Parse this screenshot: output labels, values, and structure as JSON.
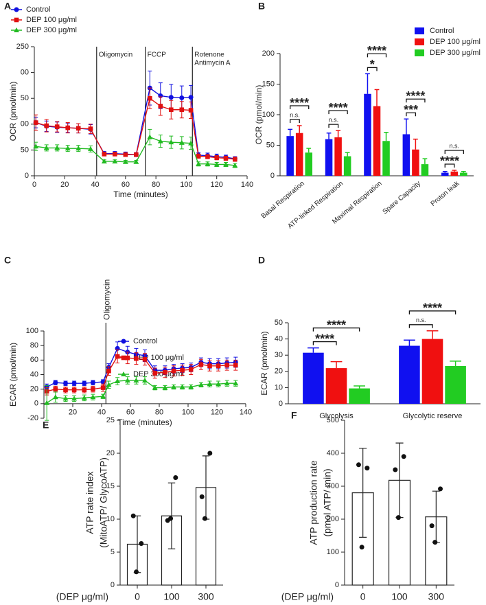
{
  "chart_data": [
    {
      "panel": "A",
      "type": "line",
      "xlabel": "Time (minutes)",
      "ylabel": "OCR (pmol/min)",
      "xlim": [
        0,
        140
      ],
      "xticks": [
        0,
        20,
        40,
        60,
        80,
        100,
        120,
        140
      ],
      "ylim": [
        0,
        250
      ],
      "yticks": [
        0,
        {
          "value": 50,
          "label": "50"
        },
        {
          "value": 100,
          "label": "00"
        },
        {
          "value": 150,
          "label": "50"
        },
        {
          "value": 200,
          "label": "00"
        },
        250
      ],
      "legend": "upper left",
      "x": [
        1,
        8,
        15,
        22,
        29,
        37,
        46,
        53,
        60,
        67,
        76,
        83,
        90,
        97,
        103,
        108,
        114,
        120,
        126,
        132
      ],
      "vlines": [
        {
          "x": 41,
          "label": [
            "Oligomycin"
          ]
        },
        {
          "x": 73,
          "label": [
            "FCCP"
          ]
        },
        {
          "x": 104,
          "label": [
            "Rotenone",
            "Antimycin A"
          ]
        }
      ],
      "series": [
        {
          "name": "Control",
          "color": "#1010e0",
          "marker": "circle",
          "values": [
            103,
            96,
            94,
            93,
            92,
            90,
            43,
            43,
            42,
            41,
            170,
            155,
            152,
            151,
            152,
            40,
            39,
            37,
            36,
            33
          ],
          "errors": [
            10,
            10,
            10,
            9,
            9,
            9,
            4,
            4,
            4,
            4,
            33,
            25,
            25,
            23,
            23,
            5,
            5,
            5,
            4,
            4
          ]
        },
        {
          "name": "DEP 100 μg/ml",
          "color": "#e01010",
          "marker": "square",
          "values": [
            103,
            97,
            95,
            93,
            92,
            91,
            42,
            42,
            41,
            41,
            150,
            135,
            128,
            128,
            127,
            38,
            37,
            35,
            34,
            32
          ],
          "errors": [
            15,
            12,
            10,
            10,
            9,
            9,
            3,
            3,
            3,
            3,
            20,
            18,
            18,
            16,
            16,
            4,
            4,
            4,
            4,
            4
          ]
        },
        {
          "name": "DEP 300 μg/ml",
          "color": "#22bb22",
          "marker": "triangle",
          "values": [
            57,
            54,
            54,
            53,
            53,
            52,
            28,
            28,
            27,
            27,
            75,
            67,
            65,
            64,
            63,
            23,
            23,
            22,
            22,
            20
          ],
          "errors": [
            8,
            6,
            6,
            6,
            6,
            6,
            3,
            3,
            3,
            3,
            15,
            12,
            12,
            12,
            12,
            4,
            4,
            4,
            4,
            4
          ]
        }
      ]
    },
    {
      "panel": "B",
      "type": "bar",
      "ylabel": "OCR (pmol/min)",
      "ylim": [
        0,
        200
      ],
      "yticks": [
        0,
        50,
        100,
        150,
        200
      ],
      "legend": "upper right",
      "label_rotate": true,
      "categories": [
        "Basal Respiration",
        "ATP-linked Respiration",
        "Maximal Respiration",
        "Spare Capacity",
        "Proton leak"
      ],
      "series": [
        {
          "name": "Control",
          "color": "#1010f0",
          "values": [
            65,
            60,
            134,
            68,
            5
          ],
          "errors": [
            11,
            10,
            33,
            25,
            2
          ]
        },
        {
          "name": "DEP 100 μg/ml",
          "color": "#f01010",
          "values": [
            70,
            63,
            114,
            43,
            7
          ],
          "errors": [
            12,
            11,
            27,
            17,
            2
          ]
        },
        {
          "name": "DEP 300 μg/ml",
          "color": "#22cc22",
          "values": [
            38,
            32,
            57,
            19,
            5
          ],
          "errors": [
            7,
            6,
            14,
            9,
            2
          ]
        }
      ],
      "significance": [
        [
          "n.s.",
          "****"
        ],
        [
          "n.s.",
          "****"
        ],
        [
          "*",
          "****"
        ],
        [
          "***",
          "****"
        ],
        [
          "****",
          "n.s."
        ]
      ]
    },
    {
      "panel": "C",
      "type": "line",
      "xlabel": "Time (minutes)",
      "ylabel": "ECAR (pmol/min)",
      "xlim": [
        0,
        140
      ],
      "xticks": [
        20,
        40,
        60,
        80,
        100,
        120,
        140
      ],
      "ylim": [
        -20,
        100
      ],
      "yticks": [
        -20,
        0,
        20,
        40,
        60,
        80,
        100
      ],
      "legend": "upper right",
      "x": [
        2,
        8,
        15,
        21,
        28,
        34,
        41,
        45,
        51,
        58,
        64,
        70,
        77,
        84,
        90,
        96,
        102,
        109,
        115,
        121,
        127,
        133
      ],
      "vlines": [
        {
          "x": 43,
          "label": [
            "Oligomycin"
          ],
          "rotate": true
        }
      ],
      "series": [
        {
          "name": "Control",
          "color": "#1010e0",
          "marker": "circle",
          "values": [
            23,
            29,
            28,
            28,
            28,
            29,
            30,
            50,
            76,
            71,
            68,
            66,
            46,
            46,
            48,
            49,
            50,
            57,
            55,
            55,
            56,
            57
          ],
          "errors": [
            4,
            3,
            3,
            3,
            3,
            3,
            3,
            5,
            9,
            8,
            8,
            8,
            6,
            6,
            6,
            6,
            6,
            6,
            7,
            7,
            7,
            7
          ]
        },
        {
          "name": "DEP 100 μg/ml",
          "color": "#e01010",
          "marker": "square",
          "values": [
            17,
            20,
            19,
            19,
            19,
            20,
            22,
            45,
            65,
            63,
            62,
            61,
            42,
            43,
            45,
            46,
            47,
            54,
            52,
            52,
            53,
            53
          ],
          "errors": [
            5,
            4,
            4,
            4,
            4,
            4,
            5,
            6,
            9,
            8,
            8,
            8,
            7,
            7,
            7,
            7,
            7,
            7,
            7,
            7,
            7,
            7
          ]
        },
        {
          "name": "DEP 300 μg/ml",
          "color": "#22bb22",
          "marker": "triangle",
          "values": [
            1,
            9,
            7,
            7,
            8,
            9,
            10,
            26,
            31,
            32,
            32,
            32,
            22,
            22,
            23,
            23,
            23,
            26,
            27,
            27,
            28,
            28
          ],
          "errors": [
            24,
            7,
            4,
            4,
            4,
            4,
            3,
            5,
            5,
            5,
            5,
            5,
            3,
            3,
            3,
            3,
            3,
            3,
            4,
            4,
            4,
            4
          ]
        }
      ]
    },
    {
      "panel": "D",
      "type": "bar",
      "ylabel": "ECAR (pmol/min)",
      "ylim": [
        0,
        50
      ],
      "yticks": [
        0,
        10,
        20,
        30,
        40,
        50
      ],
      "categories": [
        "Glycolysis",
        "Glycolytic reserve"
      ],
      "series": [
        {
          "name": "Control",
          "color": "#1010f0",
          "values": [
            31.5,
            35.8
          ],
          "errors": [
            3,
            3.5
          ]
        },
        {
          "name": "DEP 100 μg/ml",
          "color": "#f01010",
          "values": [
            22,
            40
          ],
          "errors": [
            4,
            5
          ]
        },
        {
          "name": "DEP 300 μg/ml",
          "color": "#22cc22",
          "values": [
            9.5,
            23.3
          ],
          "errors": [
            1.5,
            3
          ]
        }
      ],
      "significance": [
        [
          "****",
          "****"
        ],
        [
          "n.s.",
          "****"
        ]
      ]
    },
    {
      "panel": "E",
      "type": "bar",
      "ylabel": [
        "ATP rate index",
        "(MitoATP/ GlycoATP)"
      ],
      "xlabel": "(DEP μg/ml)",
      "ylim": [
        0,
        25
      ],
      "yticks": [
        0,
        5,
        10,
        15,
        20,
        25
      ],
      "color": "#ffffff",
      "categories": [
        "0",
        "100",
        "300"
      ],
      "values": [
        6.2,
        10.5,
        14.8
      ],
      "errors": [
        4.3,
        5,
        4.8
      ],
      "points": [
        [
          10.5,
          6.3,
          2
        ],
        [
          9.8,
          16.3,
          10.1
        ],
        [
          13.4,
          20,
          10.1
        ]
      ]
    },
    {
      "panel": "F",
      "type": "bar",
      "ylabel": [
        "ATP production rate",
        "(pmol ATP/ min)"
      ],
      "xlabel": "(DEP μg/ml)",
      "ylim": [
        0,
        500
      ],
      "yticks": [
        0,
        100,
        200,
        300,
        400,
        500
      ],
      "color": "#ffffff",
      "categories": [
        "0",
        "100",
        "300"
      ],
      "values": [
        280,
        318,
        207
      ],
      "errors": [
        135,
        113,
        78
      ],
      "points": [
        [
          365,
          355,
          115
        ],
        [
          350,
          390,
          205
        ],
        [
          180,
          292,
          130
        ]
      ]
    }
  ]
}
